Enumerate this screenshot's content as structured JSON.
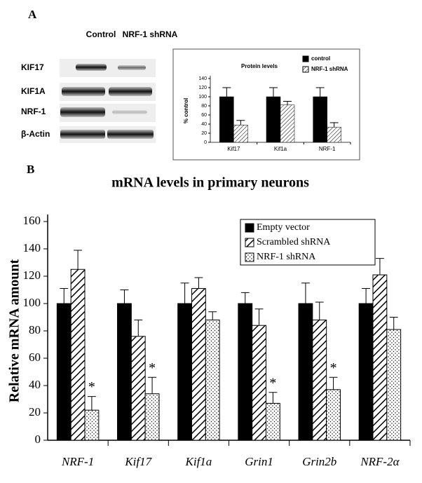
{
  "panels": [
    "A",
    "B"
  ],
  "blot": {
    "columns": [
      "Control",
      "NRF-1 shRNA"
    ],
    "rows": [
      "KIF17",
      "KIF1A",
      "NRF-1",
      "β-Actin"
    ]
  },
  "chart_data": [
    {
      "type": "bar",
      "title": "Protein levels",
      "y_label": "% control",
      "categories": [
        "Kif17",
        "Kif1a",
        "NRF-1"
      ],
      "series": [
        {
          "name": "control",
          "color": "#000000",
          "pattern": "solid",
          "values": [
            100,
            100,
            100
          ],
          "errors": [
            20,
            20,
            20
          ]
        },
        {
          "name": "NRF-1 shRNA",
          "color": "#000000",
          "pattern": "diagonal",
          "values": [
            38,
            82,
            33
          ],
          "errors": [
            10,
            8,
            10
          ]
        }
      ],
      "ylim": [
        0,
        140
      ],
      "yticks": [
        0,
        20,
        40,
        60,
        80,
        100,
        120,
        140
      ],
      "legend": "top-right"
    },
    {
      "type": "bar",
      "title": "mRNA levels in primary neurons",
      "y_label": "Relative mRNA amount",
      "categories": [
        "NRF-1",
        "Kif17",
        "Kif1a",
        "Grin1",
        "Grin2b",
        "NRF-2α"
      ],
      "series": [
        {
          "name": "Empty vector",
          "color": "#000000",
          "pattern": "solid",
          "values": [
            100,
            100,
            100,
            100,
            100,
            100
          ],
          "errors": [
            11,
            10,
            15,
            8,
            15,
            11
          ]
        },
        {
          "name": "Scrambled shRNA",
          "color": "#000000",
          "pattern": "diagonal",
          "values": [
            125,
            76,
            111,
            84,
            88,
            121
          ],
          "errors": [
            14,
            12,
            8,
            12,
            13,
            12
          ]
        },
        {
          "name": "NRF-1 shRNA",
          "color": "#000000",
          "pattern": "dots",
          "values": [
            22,
            34,
            88,
            27,
            37,
            81
          ],
          "errors": [
            10,
            12,
            6,
            8,
            9,
            9
          ],
          "significance": [
            "*",
            "*",
            null,
            "*",
            "*",
            null
          ]
        }
      ],
      "ylim": [
        0,
        160
      ],
      "yticks": [
        0,
        20,
        40,
        60,
        80,
        100,
        120,
        140,
        160
      ],
      "legend": "top-right"
    }
  ]
}
